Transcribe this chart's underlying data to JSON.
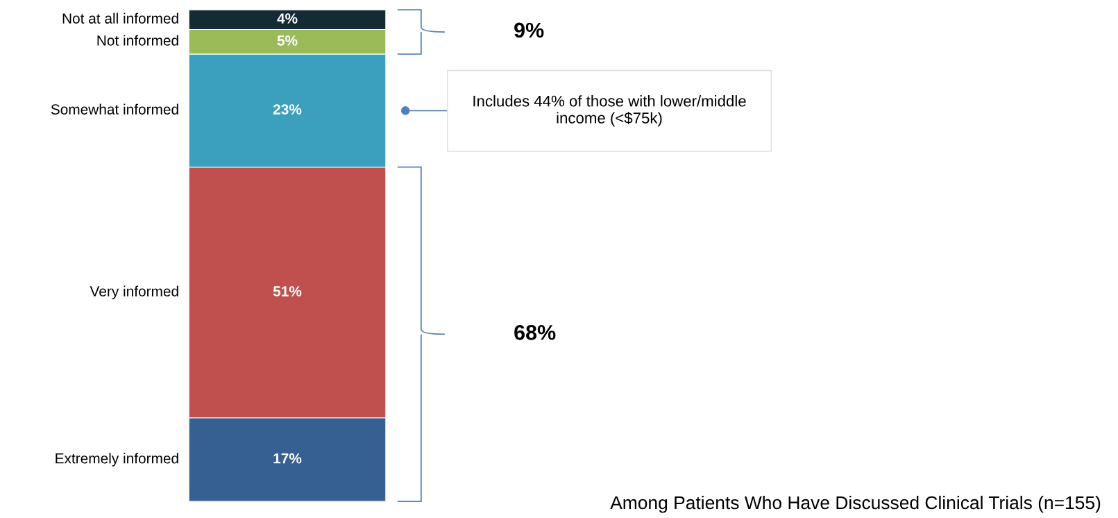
{
  "chart_data": {
    "type": "bar",
    "stacked": true,
    "categories": [
      null
    ],
    "series": [
      {
        "name": "Extremely informed",
        "color": "#366092",
        "values": [
          17
        ],
        "value_labels": [
          "17%"
        ]
      },
      {
        "name": "Very informed",
        "color": "#c0504d",
        "values": [
          51
        ],
        "value_labels": [
          "51%"
        ]
      },
      {
        "name": "Somewhat informed",
        "color": "#3ba0bd",
        "values": [
          23
        ],
        "value_labels": [
          "23%"
        ]
      },
      {
        "name": "Not informed",
        "color": "#9bbb59",
        "values": [
          5
        ],
        "value_labels": [
          "5%"
        ]
      },
      {
        "name": "Not at all informed",
        "color": "#142b36",
        "values": [
          4
        ],
        "value_labels": [
          "4%"
        ]
      }
    ],
    "annotations": [
      "9%",
      "68%",
      "Includes 44% of those with lower/middle income (<$75k)",
      "Among Patients Who Have Discussed Clinical Trials (n=155)"
    ],
    "legend": false,
    "tick_labels": false
  }
}
